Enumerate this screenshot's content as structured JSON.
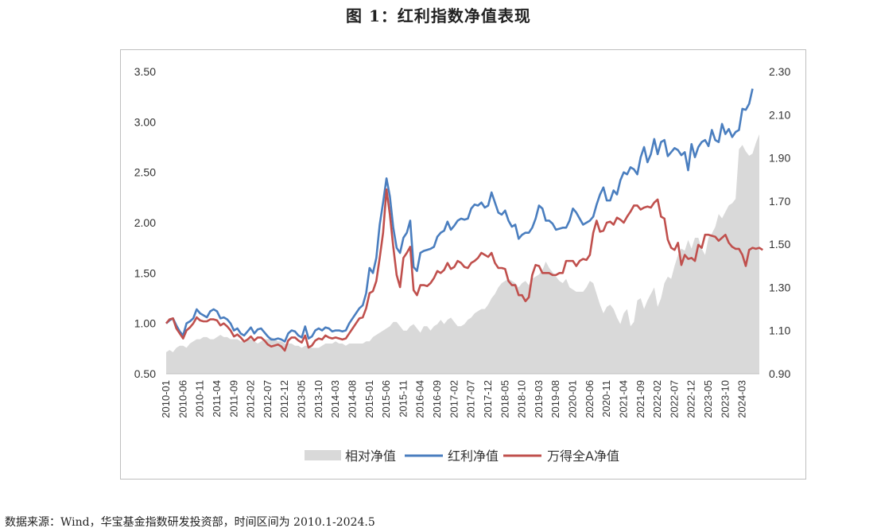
{
  "figure": {
    "title": "图 1：红利指数净值表现",
    "source": "数据来源：Wind，华宝基金指数研发投资部，时间区间为 2010.1-2024.5"
  },
  "chart_data": {
    "type": "line",
    "start_month": "2010-01",
    "x_tick_labels": [
      "2010-01",
      "2010-06",
      "2010-11",
      "2011-04",
      "2011-09",
      "2012-02",
      "2012-07",
      "2012-12",
      "2013-05",
      "2013-10",
      "2014-03",
      "2014-08",
      "2015-01",
      "2015-06",
      "2015-11",
      "2016-04",
      "2016-09",
      "2017-02",
      "2017-07",
      "2017-12",
      "2018-05",
      "2018-10",
      "2019-03",
      "2019-08",
      "2020-01",
      "2020-06",
      "2020-11",
      "2021-04",
      "2021-09",
      "2022-02",
      "2022-07",
      "2022-12",
      "2023-05",
      "2023-10",
      "2024-03"
    ],
    "y_left": {
      "ticks": [
        "0.50",
        "1.00",
        "1.50",
        "2.00",
        "2.50",
        "3.00",
        "3.50"
      ],
      "min": 0.5,
      "max": 3.5
    },
    "y_right": {
      "ticks": [
        "0.90",
        "1.10",
        "1.30",
        "1.50",
        "1.70",
        "1.90",
        "2.10",
        "2.30"
      ],
      "min": 0.9,
      "max": 2.3
    },
    "legend_position": "bottom",
    "series": [
      {
        "name": "相对净值",
        "type": "area",
        "axis": "right",
        "color": "#d9d9d9",
        "values": [
          1.0,
          1.01,
          1.0,
          1.02,
          1.03,
          1.03,
          1.02,
          1.04,
          1.05,
          1.06,
          1.06,
          1.07,
          1.07,
          1.06,
          1.06,
          1.07,
          1.08,
          1.07,
          1.07,
          1.06,
          1.06,
          1.06,
          1.05,
          1.05,
          1.06,
          1.06,
          1.05,
          1.04,
          1.05,
          1.06,
          1.06,
          1.07,
          1.06,
          1.05,
          1.05,
          1.04,
          1.04,
          1.04,
          1.03,
          1.03,
          1.02,
          1.03,
          1.03,
          1.02,
          1.02,
          1.02,
          1.03,
          1.04,
          1.04,
          1.04,
          1.05,
          1.04,
          1.04,
          1.03,
          1.04,
          1.04,
          1.04,
          1.04,
          1.04,
          1.05,
          1.05,
          1.07,
          1.08,
          1.09,
          1.1,
          1.11,
          1.12,
          1.14,
          1.14,
          1.12,
          1.1,
          1.1,
          1.12,
          1.13,
          1.11,
          1.09,
          1.12,
          1.12,
          1.1,
          1.12,
          1.13,
          1.15,
          1.13,
          1.15,
          1.16,
          1.14,
          1.12,
          1.12,
          1.13,
          1.15,
          1.16,
          1.18,
          1.19,
          1.2,
          1.2,
          1.22,
          1.25,
          1.27,
          1.3,
          1.32,
          1.33,
          1.34,
          1.33,
          1.32,
          1.3,
          1.32,
          1.33,
          1.31,
          1.34,
          1.35,
          1.36,
          1.38,
          1.42,
          1.39,
          1.37,
          1.35,
          1.33,
          1.32,
          1.34,
          1.3,
          1.29,
          1.28,
          1.28,
          1.28,
          1.3,
          1.33,
          1.32,
          1.27,
          1.22,
          1.18,
          1.21,
          1.22,
          1.2,
          1.16,
          1.13,
          1.18,
          1.2,
          1.12,
          1.14,
          1.24,
          1.25,
          1.2,
          1.24,
          1.27,
          1.3,
          1.21,
          1.25,
          1.32,
          1.35,
          1.34,
          1.4,
          1.45,
          1.48,
          1.47,
          1.52,
          1.48,
          1.53,
          1.53,
          1.48,
          1.45,
          1.53,
          1.55,
          1.58,
          1.64,
          1.62,
          1.65,
          1.68,
          1.69,
          1.71,
          1.94,
          1.96,
          1.93,
          1.91,
          1.92,
          1.97,
          2.01
        ]
      },
      {
        "name": "红利净值",
        "type": "line",
        "axis": "left",
        "color": "#4a7ebf",
        "values": [
          1.0,
          1.03,
          1.05,
          0.98,
          0.92,
          0.88,
          1.0,
          1.02,
          1.05,
          1.14,
          1.1,
          1.08,
          1.06,
          1.12,
          1.14,
          1.12,
          1.05,
          1.06,
          1.04,
          1.0,
          0.93,
          0.95,
          0.9,
          0.88,
          0.92,
          0.96,
          0.9,
          0.94,
          0.95,
          0.91,
          0.87,
          0.84,
          0.84,
          0.85,
          0.84,
          0.82,
          0.9,
          0.93,
          0.92,
          0.88,
          0.86,
          0.97,
          0.85,
          0.87,
          0.93,
          0.95,
          0.93,
          0.96,
          0.95,
          0.92,
          0.93,
          0.93,
          0.92,
          0.93,
          1.0,
          1.05,
          1.1,
          1.15,
          1.18,
          1.3,
          1.55,
          1.5,
          1.65,
          1.98,
          2.2,
          2.44,
          2.26,
          1.95,
          1.75,
          1.7,
          1.85,
          1.9,
          2.02,
          1.56,
          1.52,
          1.7,
          1.72,
          1.73,
          1.74,
          1.76,
          1.86,
          1.9,
          1.92,
          2.01,
          1.93,
          1.97,
          2.02,
          2.04,
          2.03,
          2.04,
          2.14,
          2.18,
          2.17,
          2.2,
          2.15,
          2.17,
          2.3,
          2.2,
          2.1,
          2.08,
          2.12,
          2.02,
          1.96,
          1.98,
          1.84,
          1.88,
          1.9,
          1.9,
          1.95,
          2.04,
          2.17,
          2.14,
          2.02,
          2.02,
          1.99,
          1.93,
          1.94,
          1.95,
          1.95,
          2.02,
          2.14,
          2.1,
          2.04,
          1.98,
          2.0,
          2.02,
          2.06,
          2.18,
          2.28,
          2.35,
          2.22,
          2.22,
          2.32,
          2.28,
          2.42,
          2.5,
          2.48,
          2.55,
          2.53,
          2.48,
          2.65,
          2.75,
          2.6,
          2.68,
          2.83,
          2.68,
          2.8,
          2.82,
          2.66,
          2.7,
          2.74,
          2.72,
          2.67,
          2.7,
          2.52,
          2.78,
          2.65,
          2.75,
          2.8,
          2.82,
          2.76,
          2.92,
          2.82,
          2.8,
          2.98,
          2.88,
          2.93,
          2.85,
          2.9,
          2.92,
          3.13,
          3.12,
          3.18,
          3.33
        ]
      },
      {
        "name": "万得全A净值",
        "type": "line",
        "axis": "left",
        "color": "#c0504d",
        "values": [
          1.0,
          1.04,
          1.05,
          0.95,
          0.9,
          0.85,
          0.93,
          0.96,
          1.0,
          1.06,
          1.03,
          1.02,
          1.02,
          1.04,
          1.04,
          1.03,
          0.98,
          1.0,
          0.97,
          0.93,
          0.87,
          0.89,
          0.86,
          0.82,
          0.84,
          0.87,
          0.83,
          0.86,
          0.86,
          0.83,
          0.79,
          0.77,
          0.78,
          0.79,
          0.77,
          0.73,
          0.83,
          0.86,
          0.86,
          0.83,
          0.81,
          0.88,
          0.76,
          0.78,
          0.83,
          0.85,
          0.84,
          0.88,
          0.86,
          0.85,
          0.86,
          0.85,
          0.84,
          0.85,
          0.9,
          0.95,
          1.0,
          1.05,
          1.06,
          1.15,
          1.3,
          1.32,
          1.42,
          1.65,
          1.9,
          2.33,
          2.08,
          1.76,
          1.48,
          1.36,
          1.65,
          1.7,
          1.76,
          1.33,
          1.28,
          1.38,
          1.38,
          1.37,
          1.4,
          1.45,
          1.52,
          1.5,
          1.53,
          1.6,
          1.54,
          1.56,
          1.62,
          1.6,
          1.56,
          1.55,
          1.6,
          1.62,
          1.65,
          1.7,
          1.68,
          1.66,
          1.7,
          1.6,
          1.55,
          1.55,
          1.54,
          1.42,
          1.38,
          1.38,
          1.28,
          1.28,
          1.22,
          1.26,
          1.48,
          1.58,
          1.57,
          1.5,
          1.5,
          1.5,
          1.48,
          1.48,
          1.5,
          1.5,
          1.62,
          1.62,
          1.62,
          1.57,
          1.62,
          1.64,
          1.63,
          1.68,
          1.9,
          2.02,
          1.91,
          1.92,
          2.0,
          2.01,
          1.98,
          2.05,
          2.03,
          2.0,
          2.06,
          2.11,
          2.17,
          2.17,
          2.13,
          2.15,
          2.16,
          2.15,
          2.2,
          2.23,
          2.06,
          2.04,
          1.83,
          1.75,
          1.73,
          1.8,
          1.58,
          1.68,
          1.64,
          1.65,
          1.62,
          1.78,
          1.75,
          1.88,
          1.88,
          1.87,
          1.86,
          1.82,
          1.85,
          1.88,
          1.8,
          1.76,
          1.74,
          1.74,
          1.68,
          1.57,
          1.73,
          1.75,
          1.74,
          1.75,
          1.73
        ]
      }
    ]
  }
}
